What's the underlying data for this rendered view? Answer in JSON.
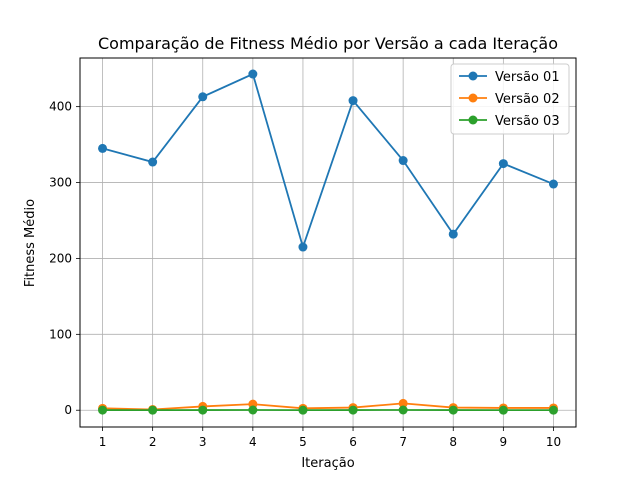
{
  "chart_data": {
    "type": "line",
    "title": "Comparação de Fitness Médio por Versão a cada Iteração",
    "xlabel": "Iteração",
    "ylabel": "Fitness Médio",
    "x": [
      1,
      2,
      3,
      4,
      5,
      6,
      7,
      8,
      9,
      10
    ],
    "xticks": [
      "1",
      "2",
      "3",
      "4",
      "5",
      "6",
      "7",
      "8",
      "9",
      "10"
    ],
    "yticks": [
      "0",
      "100",
      "200",
      "300",
      "400"
    ],
    "xlim": [
      0.55,
      10.45
    ],
    "ylim": [
      -22.1,
      464.1
    ],
    "grid": true,
    "legend_position": "top-right",
    "series": [
      {
        "name": "Versão 01",
        "color": "#1f77b4",
        "values": [
          345,
          327,
          413,
          443,
          215,
          408,
          329,
          232,
          325,
          298
        ]
      },
      {
        "name": "Versão 02",
        "color": "#ff7f0e",
        "values": [
          2.5,
          1.0,
          5.0,
          8.0,
          2.5,
          3.5,
          9.0,
          3.5,
          3.0,
          3.0
        ]
      },
      {
        "name": "Versão 03",
        "color": "#2ca02c",
        "values": [
          0.2,
          0.1,
          0.2,
          0.3,
          0.1,
          0.2,
          0.3,
          0.2,
          0.1,
          0.1
        ]
      }
    ]
  }
}
